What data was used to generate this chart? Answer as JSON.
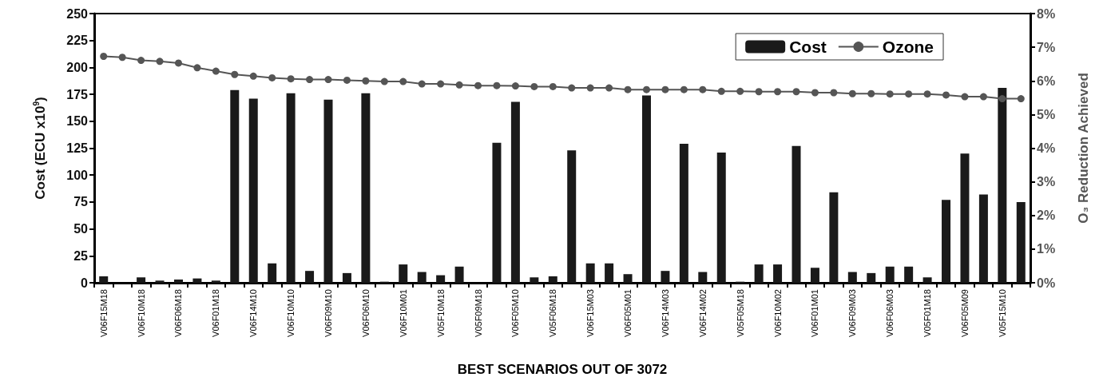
{
  "chart_data": {
    "type": "bar",
    "xlabel": "BEST SCENARIOS OUT OF 3072",
    "ylabel": "Cost (ECU x10$^{9}$)",
    "y2label": "O₃ Reduction Achieved",
    "categories": [
      "V06F15M18",
      null,
      "V06F10M18",
      null,
      "V06F06M18",
      null,
      "V06F01M18",
      null,
      "V06F14M10",
      null,
      "V06F10M10",
      null,
      "V06F09M10",
      null,
      "V06F06M10",
      null,
      "V06F10M01",
      null,
      "V05F10M18",
      null,
      "V05F09M18",
      null,
      "V06F05M10",
      null,
      "V05F06M18",
      null,
      "V06F15M03",
      null,
      "V06F05M01",
      null,
      "V06F14M03",
      null,
      "V06F14M02",
      null,
      "V05F05M18",
      null,
      "V06F10M02",
      null,
      "V06F01M01",
      null,
      "V06F09M03",
      null,
      "V06F06M03",
      null,
      "V05F01M18",
      null,
      "V06F05M09",
      null,
      "V05F15M10",
      null
    ],
    "series": [
      {
        "name": "Cost",
        "color": "#1a1a1a",
        "values": [
          6,
          0,
          5,
          2,
          3,
          4,
          2,
          179,
          171,
          18,
          176,
          11,
          170,
          9,
          176,
          1,
          17,
          10,
          7,
          15,
          0,
          130,
          168,
          5,
          6,
          123,
          18,
          18,
          8,
          174,
          11,
          129,
          10,
          121,
          1,
          17,
          17,
          127,
          14,
          84,
          10,
          9,
          15,
          15,
          5,
          77,
          120,
          82,
          181,
          75
        ]
      },
      {
        "name": "Ozone",
        "type": "line",
        "axis": "y2",
        "color": "#555555",
        "marker": "circle",
        "values": [
          6.73,
          6.7,
          6.61,
          6.58,
          6.53,
          6.39,
          6.29,
          6.19,
          6.14,
          6.09,
          6.06,
          6.04,
          6.04,
          6.02,
          6.0,
          5.98,
          5.98,
          5.91,
          5.91,
          5.88,
          5.86,
          5.86,
          5.85,
          5.83,
          5.83,
          5.79,
          5.79,
          5.79,
          5.74,
          5.74,
          5.74,
          5.74,
          5.74,
          5.69,
          5.69,
          5.68,
          5.68,
          5.68,
          5.65,
          5.65,
          5.62,
          5.62,
          5.61,
          5.61,
          5.61,
          5.58,
          5.53,
          5.53,
          5.47,
          5.47
        ]
      }
    ],
    "ylim": [
      0,
      250
    ],
    "yticks": [
      0,
      25,
      50,
      75,
      100,
      125,
      150,
      175,
      200,
      225,
      250
    ],
    "y2lim": [
      0,
      8
    ],
    "y2ticks": [
      {
        "value": 0,
        "label": "0%"
      },
      {
        "value": 1,
        "label": "1%"
      },
      {
        "value": 2,
        "label": "2%"
      },
      {
        "value": 3,
        "label": "3%"
      },
      {
        "value": 4,
        "label": "4%"
      },
      {
        "value": 5,
        "label": "5%"
      },
      {
        "value": 6,
        "label": "6%"
      },
      {
        "value": 7,
        "label": "7%"
      },
      {
        "value": 8,
        "label": "8%"
      }
    ],
    "grid": false,
    "legend": "top right"
  }
}
